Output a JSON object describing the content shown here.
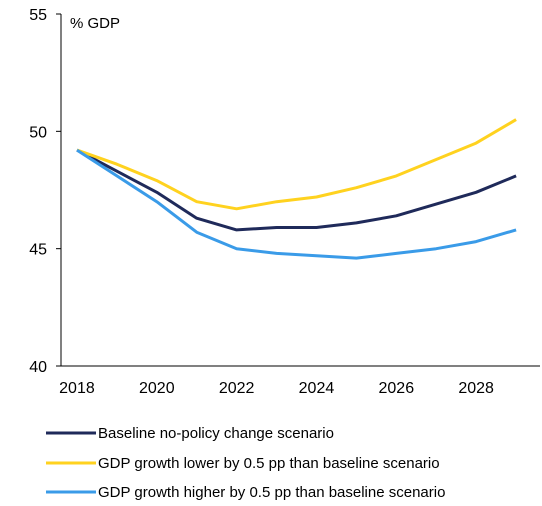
{
  "chart_data": {
    "type": "line",
    "title": "",
    "xlabel": "",
    "ylabel": "% GDP",
    "x": [
      2018,
      2019,
      2020,
      2021,
      2022,
      2023,
      2024,
      2025,
      2026,
      2027,
      2028,
      2029
    ],
    "x_ticks": [
      2018,
      2020,
      2022,
      2024,
      2026,
      2028
    ],
    "y_ticks": [
      40,
      45,
      50,
      55
    ],
    "xlim": [
      2017.6,
      2029.6
    ],
    "ylim": [
      40,
      55
    ],
    "grid": false,
    "legend_position": "bottom",
    "series": [
      {
        "name": "Baseline no-policy change scenario",
        "color": "#1f2a5a",
        "values": [
          49.2,
          48.3,
          47.4,
          46.3,
          45.8,
          45.9,
          45.9,
          46.1,
          46.4,
          46.9,
          47.4,
          48.1
        ]
      },
      {
        "name": "GDP growth lower by 0.5 pp than baseline scenario",
        "color": "#ffd21f",
        "values": [
          49.2,
          48.6,
          47.9,
          47.0,
          46.7,
          47.0,
          47.2,
          47.6,
          48.1,
          48.8,
          49.5,
          50.5
        ]
      },
      {
        "name": "GDP growth higher by 0.5 pp than baseline scenario",
        "color": "#3a9be8",
        "values": [
          49.2,
          48.1,
          47.0,
          45.7,
          45.0,
          44.8,
          44.7,
          44.6,
          44.8,
          45.0,
          45.3,
          45.8
        ]
      }
    ]
  }
}
